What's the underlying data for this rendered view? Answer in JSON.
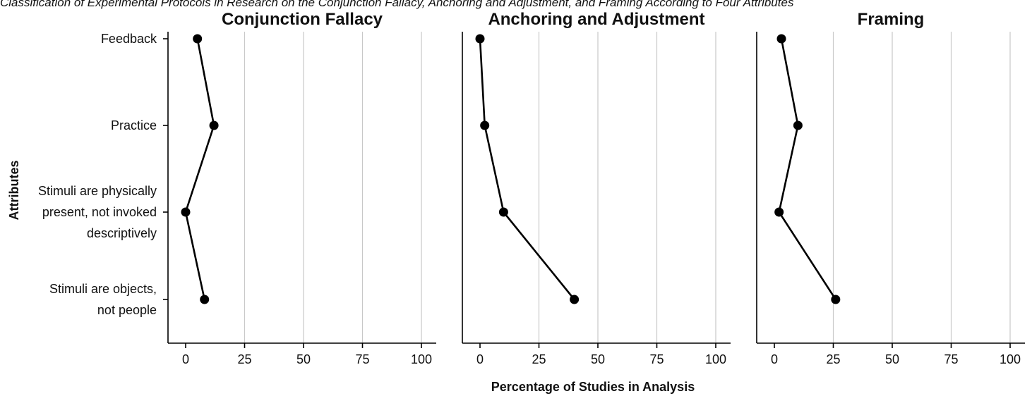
{
  "figure": {
    "caption": "Classification of Experimental Protocols in Research on the Conjunction Fallacy, Anchoring and Adjustment, and Framing According to Four Attributes"
  },
  "chart_data": {
    "type": "line",
    "ylabel": "Attributes",
    "xlabel": "Percentage of Studies in Analysis",
    "xlim": [
      -7,
      107
    ],
    "xticks": [
      0,
      25,
      50,
      75,
      100
    ],
    "categories": [
      [
        "Feedback"
      ],
      [
        "Practice"
      ],
      [
        "Stimuli are physically",
        "present, not invoked",
        "descriptively"
      ],
      [
        "Stimuli are objects,",
        "not people"
      ]
    ],
    "grid": "vertical",
    "marker_color": "#000000",
    "line_color": "#000000",
    "gridline_color": "#c8c8c8",
    "panels": [
      {
        "title": "Conjunction Fallacy",
        "values": [
          5,
          12,
          0,
          8
        ]
      },
      {
        "title": "Anchoring and Adjustment",
        "values": [
          0,
          2,
          10,
          40
        ]
      },
      {
        "title": "Framing",
        "values": [
          3,
          10,
          2,
          26
        ]
      }
    ]
  }
}
